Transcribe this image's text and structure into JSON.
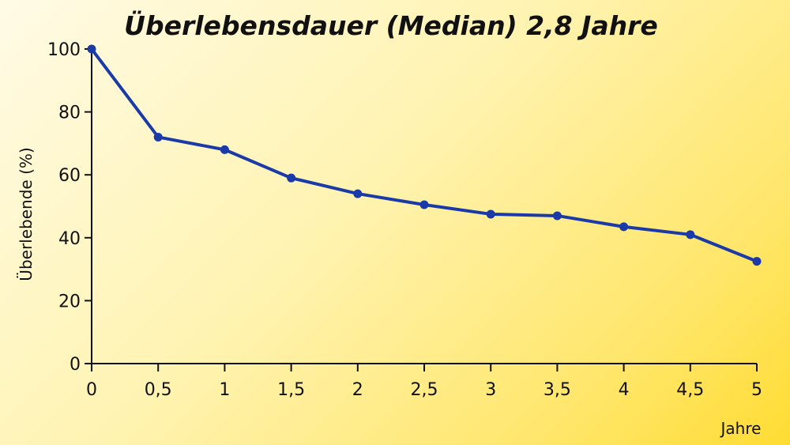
{
  "chart_data": {
    "type": "line",
    "title": "Überlebensdauer (Median) 2,8 Jahre",
    "xlabel": "Jahre",
    "ylabel": "Überlebende (%)",
    "xlim": [
      0,
      5
    ],
    "ylim": [
      0,
      100
    ],
    "x_ticks": [
      0,
      0.5,
      1,
      1.5,
      2,
      2.5,
      3,
      3.5,
      4,
      4.5,
      5
    ],
    "x_tick_labels": [
      "0",
      "0,5",
      "1",
      "1,5",
      "2",
      "2,5",
      "3",
      "3,5",
      "4",
      "4,5",
      "5"
    ],
    "y_ticks": [
      0,
      20,
      40,
      60,
      80,
      100
    ],
    "y_tick_labels": [
      "0",
      "20",
      "40",
      "60",
      "80",
      "100"
    ],
    "grid": false,
    "colors": {
      "series": "#1a3aa8",
      "axis": "#111111"
    },
    "series": [
      {
        "x": [
          0,
          0.5,
          1,
          1.5,
          2,
          2.5,
          3,
          3.5,
          4,
          4.5,
          5
        ],
        "values": [
          100,
          72,
          68,
          59,
          54,
          50.5,
          47.5,
          47,
          43.5,
          41,
          32.5
        ]
      }
    ]
  }
}
